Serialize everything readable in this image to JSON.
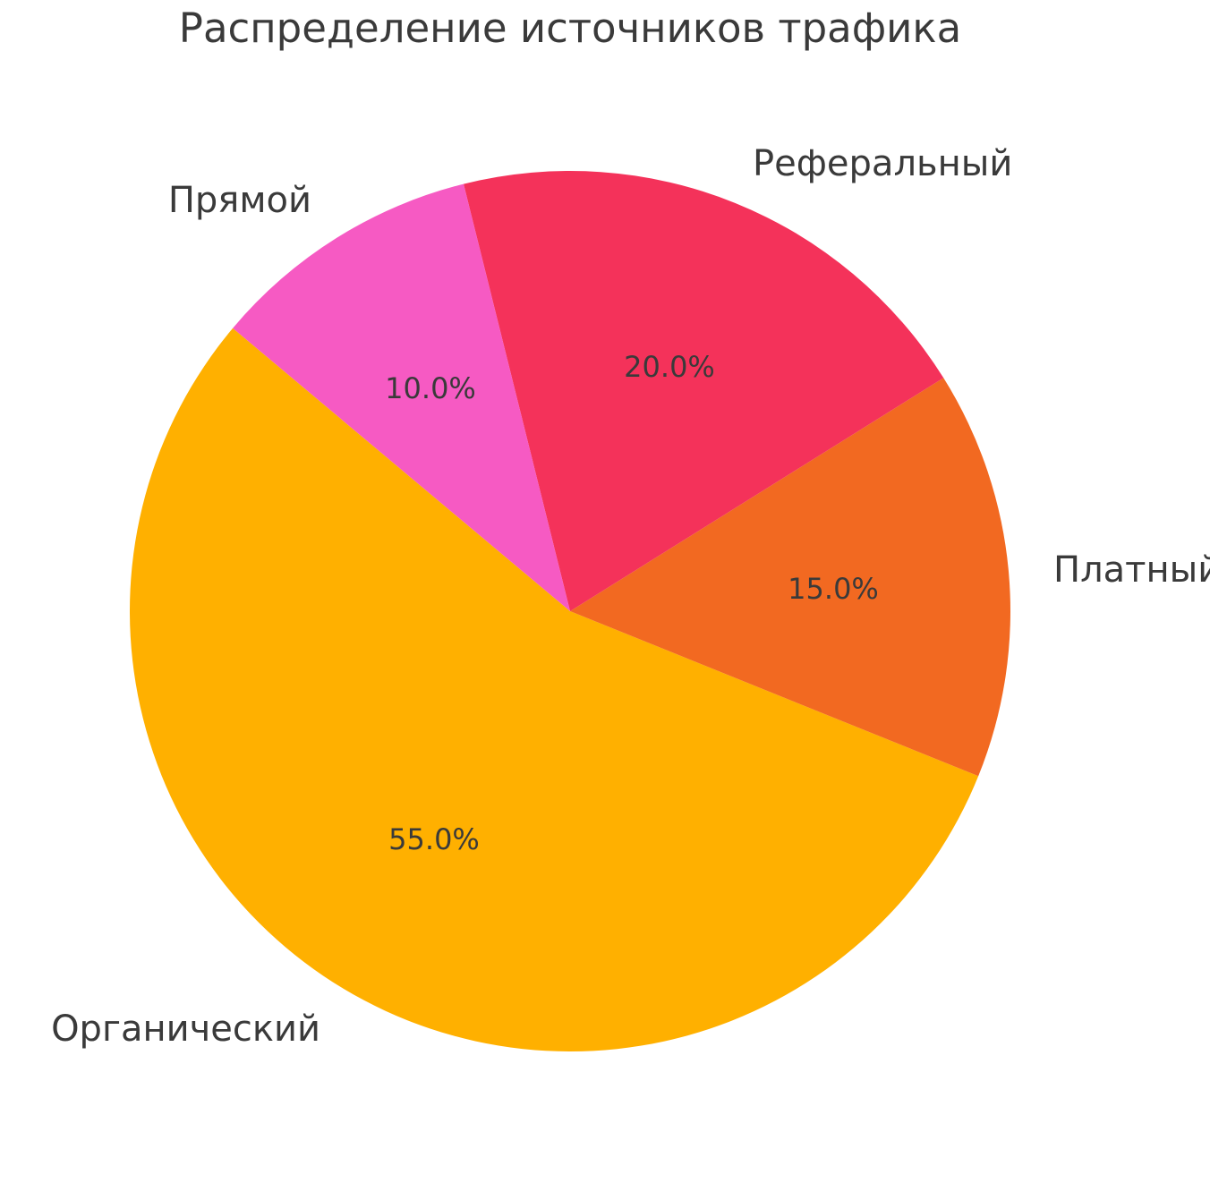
{
  "chart_data": {
    "type": "pie",
    "title": "Распределение источников трафика",
    "slices": [
      {
        "label": "Органический",
        "value": 55,
        "pct_label": "55.0%",
        "color": "#FFB000"
      },
      {
        "label": "Платный",
        "value": 15,
        "pct_label": "15.0%",
        "color": "#F26921"
      },
      {
        "label": "Реферальный",
        "value": 20,
        "pct_label": "20.0%",
        "color": "#F4325A"
      },
      {
        "label": "Прямой",
        "value": 10,
        "pct_label": "10.0%",
        "color": "#F65AC3"
      }
    ],
    "start_angle_deg": 140,
    "direction": "counterclockwise",
    "label_distance": 1.1,
    "pct_distance": 0.6,
    "background_color": "#FFFFFF",
    "text_color": "#3A3A3A",
    "legend": "none"
  }
}
